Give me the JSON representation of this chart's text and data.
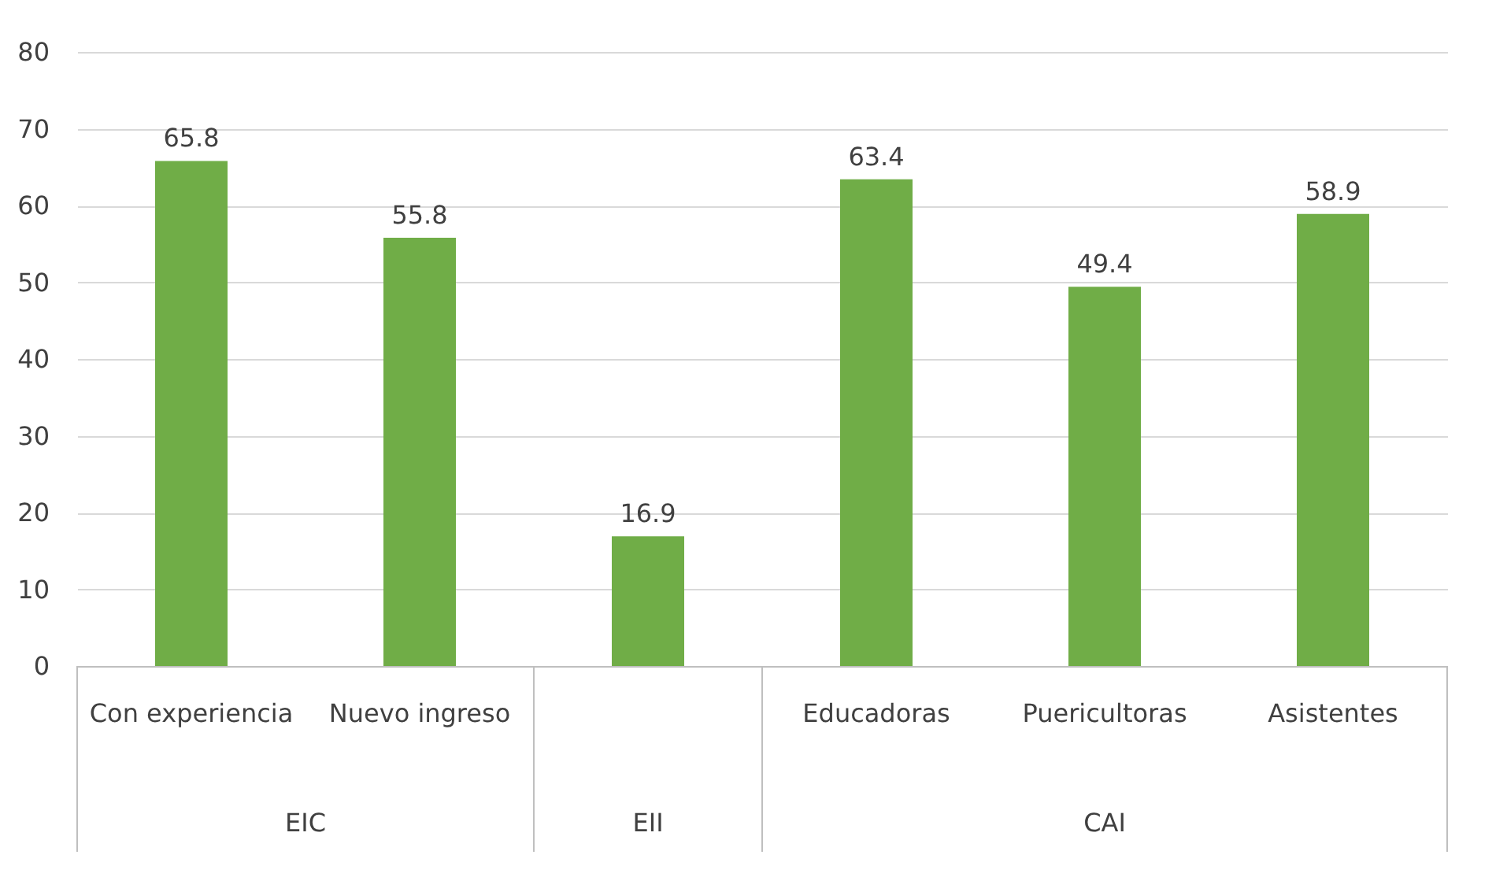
{
  "chart_data": {
    "type": "bar",
    "categories": [
      "Con experiencia",
      "Nuevo ingreso",
      null,
      "Educadoras",
      "Puericultoras",
      "Asistentes"
    ],
    "values": [
      65.8,
      55.8,
      16.9,
      63.4,
      49.4,
      58.9
    ],
    "color": "#70ad47",
    "ylim": [
      0,
      80
    ],
    "yticks": [
      0,
      10,
      20,
      30,
      40,
      50,
      60,
      70,
      80
    ],
    "grid": "y",
    "data_labels": true,
    "annotations": [
      "EIC",
      "EII",
      "CAI"
    ]
  }
}
